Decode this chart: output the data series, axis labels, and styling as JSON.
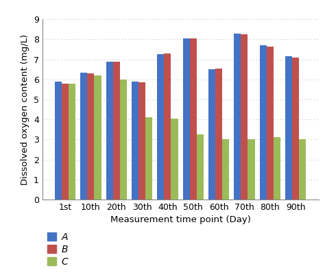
{
  "categories": [
    "1st",
    "10th",
    "20th",
    "30th",
    "40th",
    "50th",
    "60th",
    "70th",
    "80th",
    "90th"
  ],
  "series": {
    "A": [
      5.9,
      6.35,
      6.9,
      5.9,
      7.25,
      8.05,
      6.5,
      8.3,
      7.7,
      7.15
    ],
    "B": [
      5.8,
      6.3,
      6.9,
      5.85,
      7.3,
      8.05,
      6.55,
      8.25,
      7.65,
      7.1
    ],
    "C": [
      5.8,
      6.2,
      6.0,
      4.1,
      4.05,
      3.25,
      3.0,
      3.0,
      3.1,
      3.0
    ]
  },
  "colors": {
    "A": "#4472C4",
    "B": "#C0504D",
    "C": "#9BBB59"
  },
  "ylabel": "Dissolved oxygen content (mg/L)",
  "xlabel": "Measurement time point (Day)",
  "ylim": [
    0,
    9
  ],
  "yticks": [
    0,
    1,
    2,
    3,
    4,
    5,
    6,
    7,
    8,
    9
  ],
  "legend_labels": [
    "A",
    "B",
    "C"
  ],
  "bar_width": 0.27,
  "grid_color": "#bbbbbb",
  "axis_fontsize": 9.5,
  "tick_fontsize": 9,
  "legend_fontsize": 10
}
